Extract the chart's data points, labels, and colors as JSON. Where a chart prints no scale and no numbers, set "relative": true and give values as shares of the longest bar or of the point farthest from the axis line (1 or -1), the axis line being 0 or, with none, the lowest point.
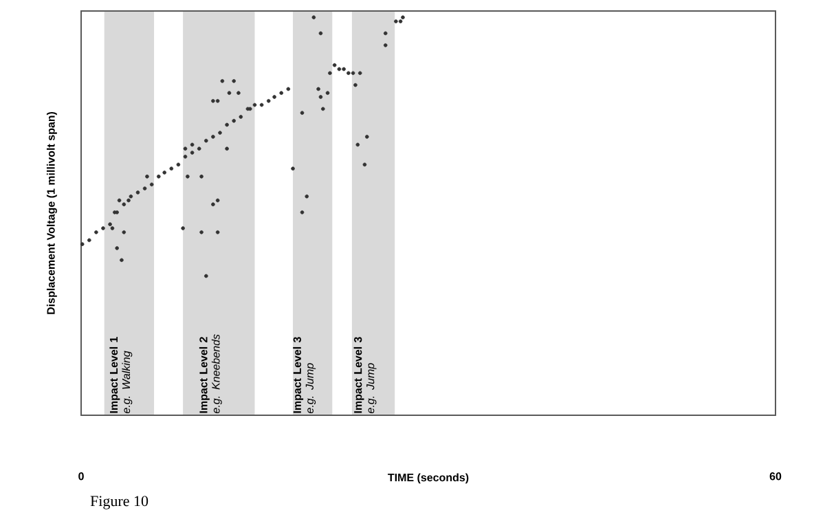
{
  "chart_data": {
    "type": "scatter",
    "relative": true,
    "xlabel": "TIME (seconds)",
    "ylabel": "Displacement Voltage (1 millivolt span)",
    "annotations": [
      "Figure 10"
    ],
    "xlim": [
      0,
      60
    ],
    "xticks": [
      0,
      60
    ],
    "color": "#333333",
    "bands": [
      {
        "axis": "x",
        "from": 2.0,
        "to": 6.3,
        "label": "**Impact Level 1** *e.g. Walking*",
        "color": "#d9d9d9"
      },
      {
        "axis": "x",
        "from": 8.8,
        "to": 15.0,
        "label": "**Impact Level 2** *e.g. Kneebends*",
        "color": "#d9d9d9"
      },
      {
        "axis": "x",
        "from": 18.3,
        "to": 21.7,
        "label": "**Impact Level 3** *e.g. Jump*",
        "color": "#d9d9d9"
      },
      {
        "axis": "x",
        "from": 23.4,
        "to": 27.1,
        "label": "**Impact Level 3** *e.g. Jump*",
        "color": "#d9d9d9"
      }
    ],
    "x": [
      0.1,
      0.7,
      1.3,
      1.9,
      2.5,
      2.7,
      2.9,
      3.1,
      3.1,
      3.3,
      3.5,
      3.7,
      3.7,
      4.1,
      4.3,
      4.9,
      5.5,
      5.7,
      6.1,
      6.7,
      7.2,
      7.8,
      8.4,
      8.8,
      9.0,
      9.0,
      9.2,
      9.6,
      9.6,
      10.2,
      10.4,
      10.4,
      10.8,
      10.8,
      11.4,
      11.4,
      11.4,
      11.8,
      11.8,
      11.8,
      12.0,
      12.2,
      12.6,
      12.6,
      12.8,
      13.2,
      13.2,
      13.6,
      13.8,
      14.4,
      14.6,
      15.0,
      15.6,
      16.2,
      16.7,
      17.3,
      17.9,
      18.3,
      19.1,
      19.1,
      19.5,
      20.1,
      20.5,
      20.7,
      20.7,
      20.9,
      21.3,
      21.5,
      21.9,
      22.3,
      22.7,
      23.1,
      23.5,
      23.7,
      23.9,
      24.1,
      24.5,
      24.7,
      26.3,
      26.3,
      27.2,
      27.6,
      27.8
    ],
    "values": [
      0.43,
      0.44,
      0.46,
      0.47,
      0.48,
      0.47,
      0.51,
      0.51,
      0.42,
      0.54,
      0.39,
      0.53,
      0.46,
      0.54,
      0.55,
      0.56,
      0.57,
      0.6,
      0.58,
      0.6,
      0.61,
      0.62,
      0.63,
      0.47,
      0.65,
      0.67,
      0.6,
      0.66,
      0.68,
      0.67,
      0.46,
      0.6,
      0.69,
      0.35,
      0.7,
      0.79,
      0.53,
      0.79,
      0.54,
      0.46,
      0.71,
      0.84,
      0.73,
      0.67,
      0.81,
      0.74,
      0.84,
      0.81,
      0.75,
      0.77,
      0.77,
      0.78,
      0.78,
      0.79,
      0.8,
      0.81,
      0.82,
      0.62,
      0.76,
      0.51,
      0.55,
      1.0,
      0.82,
      0.96,
      0.8,
      0.77,
      0.81,
      0.86,
      0.88,
      0.87,
      0.87,
      0.86,
      0.86,
      0.83,
      0.68,
      0.86,
      0.63,
      0.7,
      0.96,
      0.93,
      0.99,
      0.99,
      1.0
    ]
  }
}
